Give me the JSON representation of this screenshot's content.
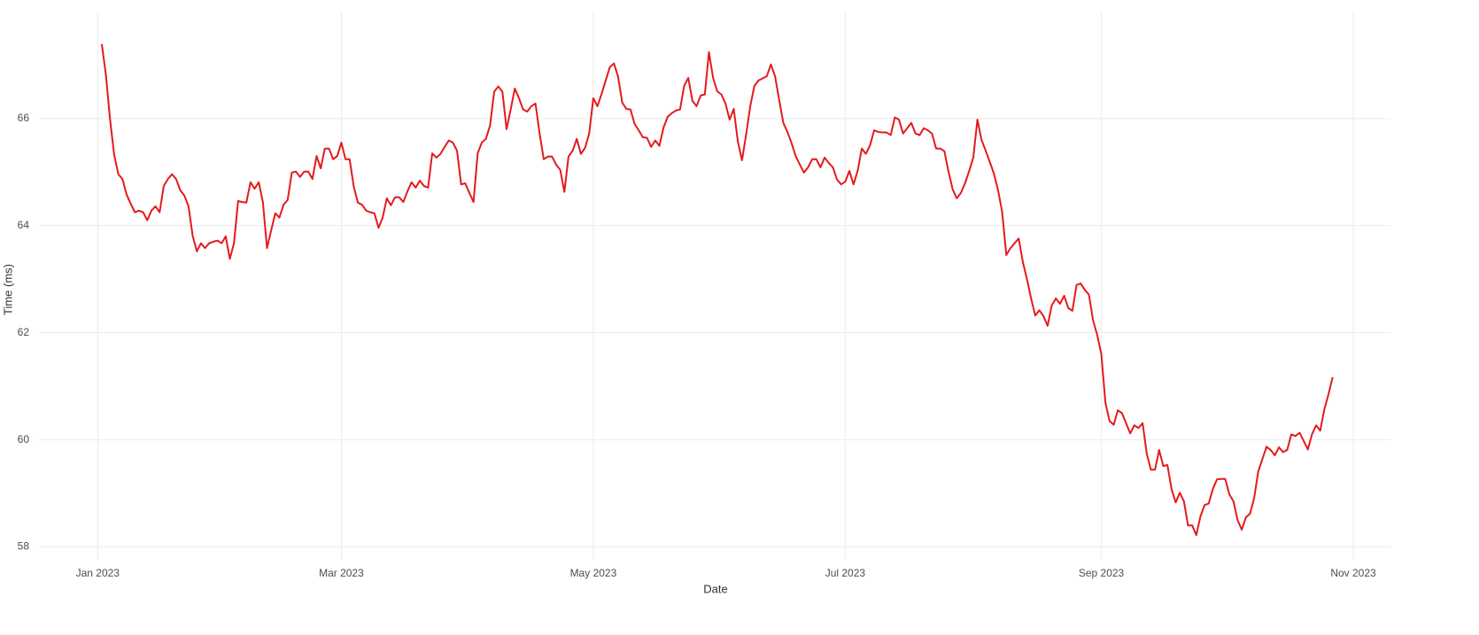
{
  "chart_data": {
    "type": "line",
    "x_label": "Date",
    "y_label": "Time (ms)",
    "x": [
      "2023-01-02",
      "2023-01-03",
      "2023-01-04",
      "2023-01-05",
      "2023-01-06",
      "2023-01-07",
      "2023-01-08",
      "2023-01-09",
      "2023-01-10",
      "2023-01-11",
      "2023-01-12",
      "2023-01-13",
      "2023-01-14",
      "2023-01-15",
      "2023-01-16",
      "2023-01-17",
      "2023-01-18",
      "2023-01-19",
      "2023-01-20",
      "2023-01-21",
      "2023-01-22",
      "2023-01-23",
      "2023-01-24",
      "2023-01-25",
      "2023-01-26",
      "2023-01-27",
      "2023-01-28",
      "2023-01-29",
      "2023-01-30",
      "2023-01-31",
      "2023-02-01",
      "2023-02-02",
      "2023-02-03",
      "2023-02-04",
      "2023-02-05",
      "2023-02-06",
      "2023-02-07",
      "2023-02-08",
      "2023-02-09",
      "2023-02-10",
      "2023-02-11",
      "2023-02-12",
      "2023-02-13",
      "2023-02-14",
      "2023-02-15",
      "2023-02-16",
      "2023-02-17",
      "2023-02-18",
      "2023-02-19",
      "2023-02-20",
      "2023-02-21",
      "2023-02-22",
      "2023-02-23",
      "2023-02-24",
      "2023-02-25",
      "2023-02-26",
      "2023-02-27",
      "2023-02-28",
      "2023-03-01",
      "2023-03-02",
      "2023-03-03",
      "2023-03-04",
      "2023-03-05",
      "2023-03-06",
      "2023-03-07",
      "2023-03-08",
      "2023-03-09",
      "2023-03-10",
      "2023-03-11",
      "2023-03-12",
      "2023-03-13",
      "2023-03-14",
      "2023-03-15",
      "2023-03-16",
      "2023-03-17",
      "2023-03-18",
      "2023-03-19",
      "2023-03-20",
      "2023-03-21",
      "2023-03-22",
      "2023-03-23",
      "2023-03-24",
      "2023-03-25",
      "2023-03-26",
      "2023-03-27",
      "2023-03-28",
      "2023-03-29",
      "2023-03-30",
      "2023-03-31",
      "2023-04-01",
      "2023-04-02",
      "2023-04-03",
      "2023-04-04",
      "2023-04-05",
      "2023-04-06",
      "2023-04-07",
      "2023-04-08",
      "2023-04-09",
      "2023-04-10",
      "2023-04-11",
      "2023-04-12",
      "2023-04-13",
      "2023-04-14",
      "2023-04-15",
      "2023-04-16",
      "2023-04-17",
      "2023-04-18",
      "2023-04-19",
      "2023-04-20",
      "2023-04-21",
      "2023-04-22",
      "2023-04-23",
      "2023-04-24",
      "2023-04-25",
      "2023-04-26",
      "2023-04-27",
      "2023-04-28",
      "2023-04-29",
      "2023-04-30",
      "2023-05-01",
      "2023-05-02",
      "2023-05-03",
      "2023-05-04",
      "2023-05-05",
      "2023-05-06",
      "2023-05-07",
      "2023-05-08",
      "2023-05-09",
      "2023-05-10",
      "2023-05-11",
      "2023-05-12",
      "2023-05-13",
      "2023-05-14",
      "2023-05-15",
      "2023-05-16",
      "2023-05-17",
      "2023-05-18",
      "2023-05-19",
      "2023-05-20",
      "2023-05-21",
      "2023-05-22",
      "2023-05-23",
      "2023-05-24",
      "2023-05-25",
      "2023-05-26",
      "2023-05-27",
      "2023-05-28",
      "2023-05-29",
      "2023-05-30",
      "2023-05-31",
      "2023-06-01",
      "2023-06-02",
      "2023-06-03",
      "2023-06-04",
      "2023-06-05",
      "2023-06-06",
      "2023-06-07",
      "2023-06-08",
      "2023-06-09",
      "2023-06-10",
      "2023-06-11",
      "2023-06-12",
      "2023-06-13",
      "2023-06-14",
      "2023-06-15",
      "2023-06-16",
      "2023-06-17",
      "2023-06-18",
      "2023-06-19",
      "2023-06-20",
      "2023-06-21",
      "2023-06-22",
      "2023-06-23",
      "2023-06-24",
      "2023-06-25",
      "2023-06-26",
      "2023-06-27",
      "2023-06-28",
      "2023-06-29",
      "2023-06-30",
      "2023-07-01",
      "2023-07-02",
      "2023-07-03",
      "2023-07-04",
      "2023-07-05",
      "2023-07-06",
      "2023-07-07",
      "2023-07-08",
      "2023-07-09",
      "2023-07-10",
      "2023-07-11",
      "2023-07-12",
      "2023-07-13",
      "2023-07-14",
      "2023-07-15",
      "2023-07-16",
      "2023-07-17",
      "2023-07-18",
      "2023-07-19",
      "2023-07-20",
      "2023-07-21",
      "2023-07-22",
      "2023-07-23",
      "2023-07-24",
      "2023-07-25",
      "2023-07-26",
      "2023-07-27",
      "2023-07-28",
      "2023-07-29",
      "2023-07-30",
      "2023-07-31",
      "2023-08-01",
      "2023-08-02",
      "2023-08-03",
      "2023-08-04",
      "2023-08-05",
      "2023-08-06",
      "2023-08-07",
      "2023-08-08",
      "2023-08-09",
      "2023-08-10",
      "2023-08-11",
      "2023-08-12",
      "2023-08-13",
      "2023-08-14",
      "2023-08-15",
      "2023-08-16",
      "2023-08-17",
      "2023-08-18",
      "2023-08-19",
      "2023-08-20",
      "2023-08-21",
      "2023-08-22",
      "2023-08-23",
      "2023-08-24",
      "2023-08-25",
      "2023-08-26",
      "2023-08-27",
      "2023-08-28",
      "2023-08-29",
      "2023-08-30",
      "2023-08-31",
      "2023-09-01",
      "2023-09-02",
      "2023-09-03",
      "2023-09-04",
      "2023-09-05",
      "2023-09-06",
      "2023-09-07",
      "2023-09-08",
      "2023-09-09",
      "2023-09-10",
      "2023-09-11",
      "2023-09-12",
      "2023-09-13",
      "2023-09-14",
      "2023-09-15",
      "2023-09-16",
      "2023-09-17",
      "2023-09-18",
      "2023-09-19",
      "2023-09-20",
      "2023-09-21",
      "2023-09-22",
      "2023-09-23",
      "2023-09-24",
      "2023-09-25",
      "2023-09-26",
      "2023-09-27",
      "2023-09-28",
      "2023-09-29",
      "2023-09-30",
      "2023-10-01",
      "2023-10-02",
      "2023-10-03",
      "2023-10-04",
      "2023-10-05",
      "2023-10-06",
      "2023-10-07",
      "2023-10-08",
      "2023-10-09",
      "2023-10-10",
      "2023-10-11",
      "2023-10-12",
      "2023-10-13",
      "2023-10-14",
      "2023-10-15",
      "2023-10-16",
      "2023-10-17",
      "2023-10-18",
      "2023-10-19",
      "2023-10-20",
      "2023-10-21",
      "2023-10-22",
      "2023-10-23",
      "2023-10-24",
      "2023-10-25",
      "2023-10-26",
      "2023-10-27"
    ],
    "series": [
      {
        "color": "#e41a1c",
        "values": [
          67.39,
          66.81,
          65.98,
          65.32,
          64.96,
          64.87,
          64.58,
          64.41,
          64.25,
          64.28,
          64.25,
          64.1,
          64.28,
          64.36,
          64.25,
          64.74,
          64.87,
          64.96,
          64.87,
          64.66,
          64.56,
          64.36,
          63.81,
          63.52,
          63.67,
          63.58,
          63.67,
          63.7,
          63.72,
          63.67,
          63.8,
          63.38,
          63.67,
          64.46,
          64.44,
          64.43,
          64.81,
          64.69,
          64.81,
          64.44,
          63.58,
          63.91,
          64.23,
          64.15,
          64.39,
          64.48,
          64.99,
          65.01,
          64.91,
          65.01,
          65.01,
          64.87,
          65.3,
          65.07,
          65.44,
          65.44,
          65.24,
          65.3,
          65.55,
          65.24,
          65.24,
          64.73,
          64.43,
          64.39,
          64.28,
          64.25,
          64.23,
          63.96,
          64.15,
          64.51,
          64.38,
          64.53,
          64.53,
          64.44,
          64.64,
          64.81,
          64.71,
          64.84,
          64.74,
          64.71,
          65.35,
          65.27,
          65.34,
          65.47,
          65.59,
          65.55,
          65.4,
          64.77,
          64.79,
          64.61,
          64.44,
          65.35,
          65.55,
          65.62,
          65.87,
          66.5,
          66.6,
          66.5,
          65.8,
          66.17,
          66.56,
          66.38,
          66.17,
          66.13,
          66.23,
          66.28,
          65.72,
          65.24,
          65.29,
          65.29,
          65.14,
          65.04,
          64.63,
          65.29,
          65.4,
          65.62,
          65.34,
          65.45,
          65.72,
          66.38,
          66.23,
          66.46,
          66.71,
          66.96,
          67.03,
          66.78,
          66.3,
          66.18,
          66.17,
          65.9,
          65.78,
          65.65,
          65.64,
          65.47,
          65.59,
          65.49,
          65.83,
          66.03,
          66.1,
          66.15,
          66.17,
          66.61,
          66.76,
          66.33,
          66.23,
          66.43,
          66.45,
          67.24,
          66.76,
          66.51,
          66.45,
          66.28,
          65.98,
          66.18,
          65.57,
          65.22,
          65.7,
          66.23,
          66.61,
          66.71,
          66.75,
          66.79,
          67.01,
          66.79,
          66.35,
          65.92,
          65.75,
          65.54,
          65.3,
          65.14,
          64.99,
          65.09,
          65.24,
          65.24,
          65.09,
          65.27,
          65.17,
          65.09,
          64.86,
          64.77,
          64.82,
          65.02,
          64.77,
          65.02,
          65.44,
          65.34,
          65.5,
          65.78,
          65.75,
          65.74,
          65.74,
          65.69,
          66.02,
          65.98,
          65.72,
          65.82,
          65.92,
          65.72,
          65.69,
          65.82,
          65.78,
          65.72,
          65.44,
          65.44,
          65.39,
          65.01,
          64.68,
          64.51,
          64.61,
          64.79,
          65.02,
          65.27,
          65.98,
          65.6,
          65.4,
          65.19,
          64.97,
          64.66,
          64.25,
          63.45,
          63.58,
          63.67,
          63.76,
          63.32,
          63.0,
          62.64,
          62.32,
          62.42,
          62.31,
          62.13,
          62.51,
          62.64,
          62.54,
          62.69,
          62.46,
          62.41,
          62.89,
          62.92,
          62.8,
          62.71,
          62.23,
          61.96,
          61.6,
          60.69,
          60.35,
          60.28,
          60.55,
          60.5,
          60.31,
          60.12,
          60.27,
          60.22,
          60.31,
          59.74,
          59.44,
          59.44,
          59.81,
          59.51,
          59.53,
          59.08,
          58.83,
          59.01,
          58.85,
          58.4,
          58.4,
          58.22,
          58.57,
          58.78,
          58.81,
          59.08,
          59.26,
          59.27,
          59.27,
          58.98,
          58.85,
          58.5,
          58.32,
          58.55,
          58.62,
          58.91,
          59.41,
          59.64,
          59.87,
          59.81,
          59.71,
          59.86,
          59.77,
          59.81,
          60.1,
          60.07,
          60.13,
          59.98,
          59.82,
          60.1,
          60.27,
          60.17,
          60.57,
          60.85,
          61.17
        ]
      }
    ],
    "xlim": [
      "2022-12-18",
      "2023-11-10"
    ],
    "xticks": [
      {
        "value": "2023-01-01",
        "label": "Jan 2023"
      },
      {
        "value": "2023-03-01",
        "label": "Mar 2023"
      },
      {
        "value": "2023-05-01",
        "label": "May 2023"
      },
      {
        "value": "2023-07-01",
        "label": "Jul 2023"
      },
      {
        "value": "2023-09-01",
        "label": "Sep 2023"
      },
      {
        "value": "2023-11-01",
        "label": "Nov 2023"
      }
    ],
    "ylim": [
      57.76,
      67.85
    ],
    "yticks": [
      58,
      60,
      62,
      64,
      66
    ],
    "grid": true
  }
}
